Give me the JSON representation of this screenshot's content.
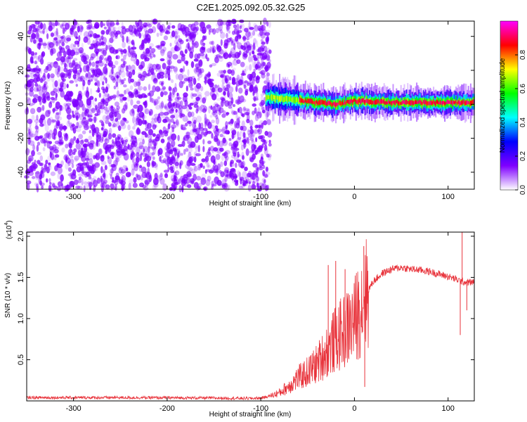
{
  "figure": {
    "title": "C2E1.2025.092.05.32.G25"
  },
  "chart_data": [
    {
      "type": "heatmap",
      "title": "C2E1.2025.092.05.32.G25",
      "xlabel": "Height of straight line (km)",
      "ylabel": "Frequency (Hz)",
      "xlim": [
        -350,
        128
      ],
      "ylim": [
        -50,
        49
      ],
      "x_ticks": [
        -300,
        -200,
        -100,
        0,
        100
      ],
      "y_ticks": [
        -40,
        -20,
        0,
        20,
        40
      ],
      "colorbar": {
        "label": "Normalized spectral amplitude",
        "range": [
          0,
          1
        ],
        "ticks": [
          0.0,
          0.2,
          0.4,
          0.6,
          0.8
        ],
        "tick_labels": [
          "0.0",
          "0.2",
          "0.4",
          "0.6",
          "0.8"
        ],
        "colormap": [
          "#ffffff",
          "#7f00ff",
          "#0000ff",
          "#00ffff",
          "#00ff00",
          "#ffff00",
          "#ff0000",
          "#ff00ff"
        ]
      },
      "regions": [
        {
          "name": "noise",
          "x_range": [
            -350,
            -90
          ],
          "y_range": [
            -50,
            49
          ],
          "amplitude": [
            0.0,
            0.25
          ],
          "color": "#7f00ff"
        },
        {
          "name": "signal-band",
          "x_range": [
            -95,
            128
          ],
          "center_hz": [
            4,
            3,
            1,
            0,
            2,
            1,
            1,
            1
          ],
          "center_x": [
            -95,
            -70,
            -40,
            -20,
            0,
            40,
            80,
            128
          ],
          "peak_amplitude": 1.0
        }
      ]
    },
    {
      "type": "line",
      "xlabel": "Height of straight line (km)",
      "ylabel": "SNR (10 * v/v)",
      "y_scale_label": "(x10",
      "y_scale_exp": "4",
      "xlim": [
        -350,
        128
      ],
      "ylim": [
        0,
        20500
      ],
      "x_ticks": [
        -300,
        -200,
        -100,
        0,
        100
      ],
      "y_ticks": [
        5000,
        10000,
        15000,
        20000
      ],
      "y_tick_labels": [
        "0.5",
        "1.0",
        "1.5",
        "2.0"
      ],
      "color": "#e8323a",
      "x": [
        -350,
        -300,
        -250,
        -200,
        -150,
        -110,
        -100,
        -90,
        -80,
        -70,
        -60,
        -50,
        -40,
        -30,
        -20,
        -10,
        0,
        10,
        20,
        30,
        40,
        50,
        60,
        70,
        80,
        90,
        100,
        110,
        115,
        120,
        128
      ],
      "y": [
        400,
        400,
        400,
        380,
        350,
        300,
        350,
        600,
        1000,
        1800,
        2800,
        3500,
        4500,
        6000,
        7500,
        8500,
        9800,
        12500,
        14500,
        15500,
        16000,
        16200,
        16000,
        15900,
        15700,
        15400,
        15100,
        14700,
        14500,
        14400,
        14400
      ],
      "spikes": [
        {
          "x": -28,
          "y": 16500
        },
        {
          "x": -20,
          "y": 17000
        },
        {
          "x": -10,
          "y": 16000
        },
        {
          "x": 10,
          "y": 18800
        },
        {
          "x": 11,
          "y": 1700
        },
        {
          "x": 113,
          "y": 8000
        },
        {
          "x": 115,
          "y": 20500
        },
        {
          "x": 120,
          "y": 11000
        }
      ]
    }
  ]
}
